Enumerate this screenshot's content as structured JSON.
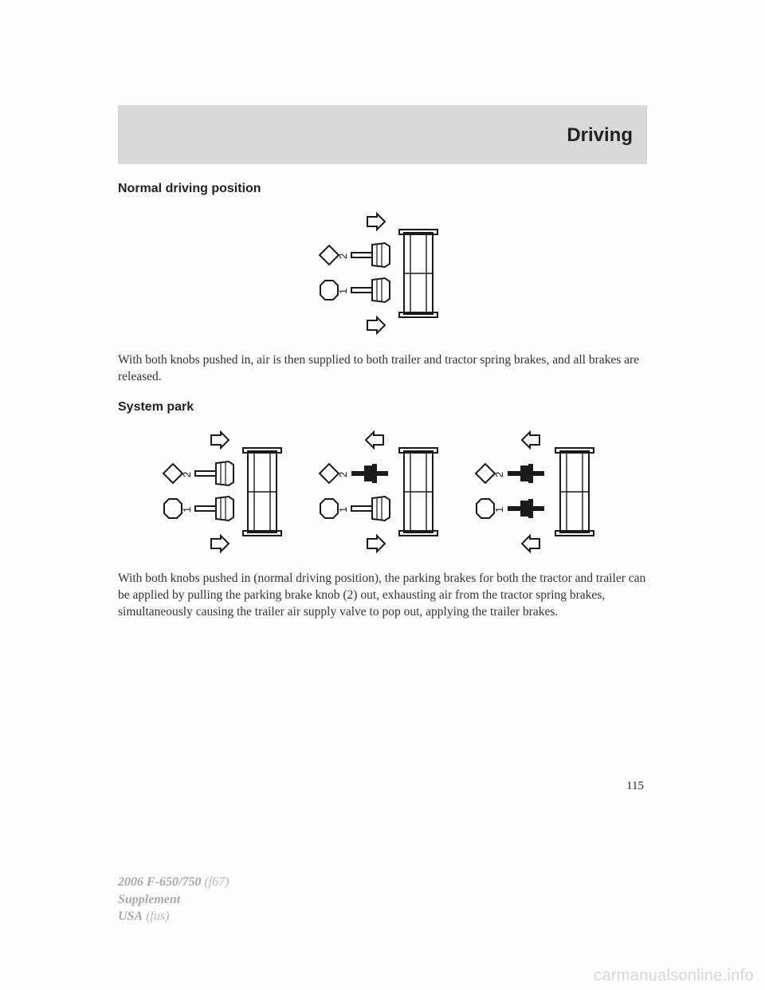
{
  "header": {
    "title": "Driving"
  },
  "section1": {
    "heading": "Normal driving position",
    "body": "With both knobs pushed in, air is then supplied to both trailer and tractor spring brakes, and all brakes are released."
  },
  "section2": {
    "heading": "System park",
    "body": "With both knobs pushed in (normal driving position), the parking brakes for both the tractor and trailer can be applied by pulling the parking brake knob (2) out, exhausting air from the tractor spring brakes, simultaneously causing the trailer air supply valve to pop out, applying the trailer brakes."
  },
  "page_number": "115",
  "publication": {
    "model": "2006 F-650/750",
    "code": "(f67)",
    "supplement": "Supplement",
    "region": "USA",
    "fus": "(fus)"
  },
  "watermark": "carmanualsonline.info",
  "diagram_style": {
    "stroke": "#1a1a1a",
    "stroke_width": 2,
    "bg": "#fdfdfd",
    "unit_w": 170,
    "unit_h": 158
  },
  "diagrams": {
    "normal": [
      {
        "top_arrow": "right",
        "bottom_arrow": "right",
        "knob2": "in",
        "knob1": "in"
      }
    ],
    "system_park": [
      {
        "top_arrow": "right",
        "bottom_arrow": "right",
        "knob2": "in",
        "knob1": "in"
      },
      {
        "top_arrow": "left",
        "bottom_arrow": "right",
        "knob2": "out",
        "knob1": "in"
      },
      {
        "top_arrow": "left",
        "bottom_arrow": "left",
        "knob2": "out",
        "knob1": "out"
      }
    ]
  }
}
